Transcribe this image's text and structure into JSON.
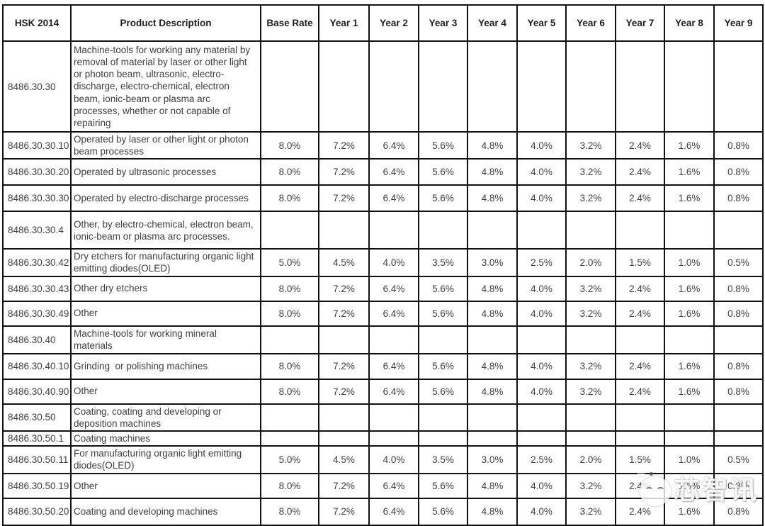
{
  "table": {
    "headers": [
      "HSK 2014",
      "Product Description",
      "Base Rate",
      "Year 1",
      "Year 2",
      "Year 3",
      "Year 4",
      "Year 5",
      "Year 6",
      "Year 7",
      "Year 8",
      "Year 9"
    ],
    "rows": [
      {
        "code": "8486.30.30",
        "description": "Machine-tools for working any material by removal of material by laser or other light or photon beam, ultrasonic, electro-discharge, electro-chemical, electron beam, ionic-beam or plasma arc processes, whether or not capable of repairing",
        "rates": [
          "",
          "",
          "",
          "",
          "",
          "",
          "",
          "",
          "",
          ""
        ]
      },
      {
        "code": "8486.30.30.10",
        "description": "Operated by laser or other light or photon beam processes",
        "rates": [
          "8.0%",
          "7.2%",
          "6.4%",
          "5.6%",
          "4.8%",
          "4.0%",
          "3.2%",
          "2.4%",
          "1.6%",
          "0.8%"
        ]
      },
      {
        "code": "8486.30.30.20",
        "description": "Operated by ultrasonic processes",
        "rates": [
          "8.0%",
          "7.2%",
          "6.4%",
          "5.6%",
          "4.8%",
          "4.0%",
          "3.2%",
          "2.4%",
          "1.6%",
          "0.8%"
        ]
      },
      {
        "code": "8486.30.30.30",
        "description": "Operated by electro-discharge processes",
        "rates": [
          "8.0%",
          "7.2%",
          "6.4%",
          "5.6%",
          "4.8%",
          "4.0%",
          "3.2%",
          "2.4%",
          "1.6%",
          "0.8%"
        ]
      },
      {
        "code": "8486.30.30.4",
        "description": "Other, by electro-chemical, electron beam, ionic-beam or plasma arc processes.",
        "rates": [
          "",
          "",
          "",
          "",
          "",
          "",
          "",
          "",
          "",
          ""
        ]
      },
      {
        "code": "8486.30.30.42",
        "description": "Dry etchers for manufacturing organic light emitting diodes(OLED)",
        "rates": [
          "5.0%",
          "4.5%",
          "4.0%",
          "3.5%",
          "3.0%",
          "2.5%",
          "2.0%",
          "1.5%",
          "1.0%",
          "0.5%"
        ]
      },
      {
        "code": "8486.30.30.43",
        "description": "Other dry etchers",
        "rates": [
          "8.0%",
          "7.2%",
          "6.4%",
          "5.6%",
          "4.8%",
          "4.0%",
          "3.2%",
          "2.4%",
          "1.6%",
          "0.8%"
        ]
      },
      {
        "code": "8486.30.30.49",
        "description": "Other",
        "rates": [
          "8.0%",
          "7.2%",
          "6.4%",
          "5.6%",
          "4.8%",
          "4.0%",
          "3.2%",
          "2.4%",
          "1.6%",
          "0.8%"
        ]
      },
      {
        "code": "8486.30.40",
        "description": "Machine-tools for working mineral materials",
        "rates": [
          "",
          "",
          "",
          "",
          "",
          "",
          "",
          "",
          "",
          ""
        ]
      },
      {
        "code": "8486.30.40.10",
        "description": "Grinding  or polishing machines",
        "rates": [
          "8.0%",
          "7.2%",
          "6.4%",
          "5.6%",
          "4.8%",
          "4.0%",
          "3.2%",
          "2.4%",
          "1.6%",
          "0.8%"
        ]
      },
      {
        "code": "8486.30.40.90",
        "description": "Other",
        "rates": [
          "8.0%",
          "7.2%",
          "6.4%",
          "5.6%",
          "4.8%",
          "4.0%",
          "3.2%",
          "2.4%",
          "1.6%",
          "0.8%"
        ]
      },
      {
        "code": "8486.30.50",
        "description": "Coating, coating and developing or deposition machines",
        "rates": [
          "",
          "",
          "",
          "",
          "",
          "",
          "",
          "",
          "",
          ""
        ]
      },
      {
        "code": "8486.30.50.1",
        "description": "Coating machines",
        "rates": [
          "",
          "",
          "",
          "",
          "",
          "",
          "",
          "",
          "",
          ""
        ]
      },
      {
        "code": "8486.30.50.11",
        "description": "For manufacturing organic light emitting diodes(OLED)",
        "rates": [
          "5.0%",
          "4.5%",
          "4.0%",
          "3.5%",
          "3.0%",
          "2.5%",
          "2.0%",
          "1.5%",
          "1.0%",
          "0.5%"
        ]
      },
      {
        "code": "8486.30.50.19",
        "description": "Other",
        "rates": [
          "8.0%",
          "7.2%",
          "6.4%",
          "5.6%",
          "4.8%",
          "4.0%",
          "3.2%",
          "2.4%",
          "1.6%",
          "0.8%"
        ]
      },
      {
        "code": "8486.30.50.20",
        "description": "Coating and developing machines",
        "rates": [
          "8.0%",
          "7.2%",
          "6.4%",
          "5.6%",
          "4.8%",
          "4.0%",
          "3.2%",
          "2.4%",
          "1.6%",
          "0.8%"
        ]
      },
      {
        "code": "",
        "description": "",
        "rates": [
          "",
          "",
          "",
          "",
          "",
          "",
          "",
          "",
          "",
          ""
        ]
      }
    ]
  },
  "watermark": {
    "text": "芯智讯",
    "logo": "chat-face-logo"
  },
  "colors": {
    "border": "#111111",
    "text": "#3e3e3e",
    "header_text": "#1e1e1e",
    "background": "#ffffff",
    "watermark": "#ffffff"
  }
}
